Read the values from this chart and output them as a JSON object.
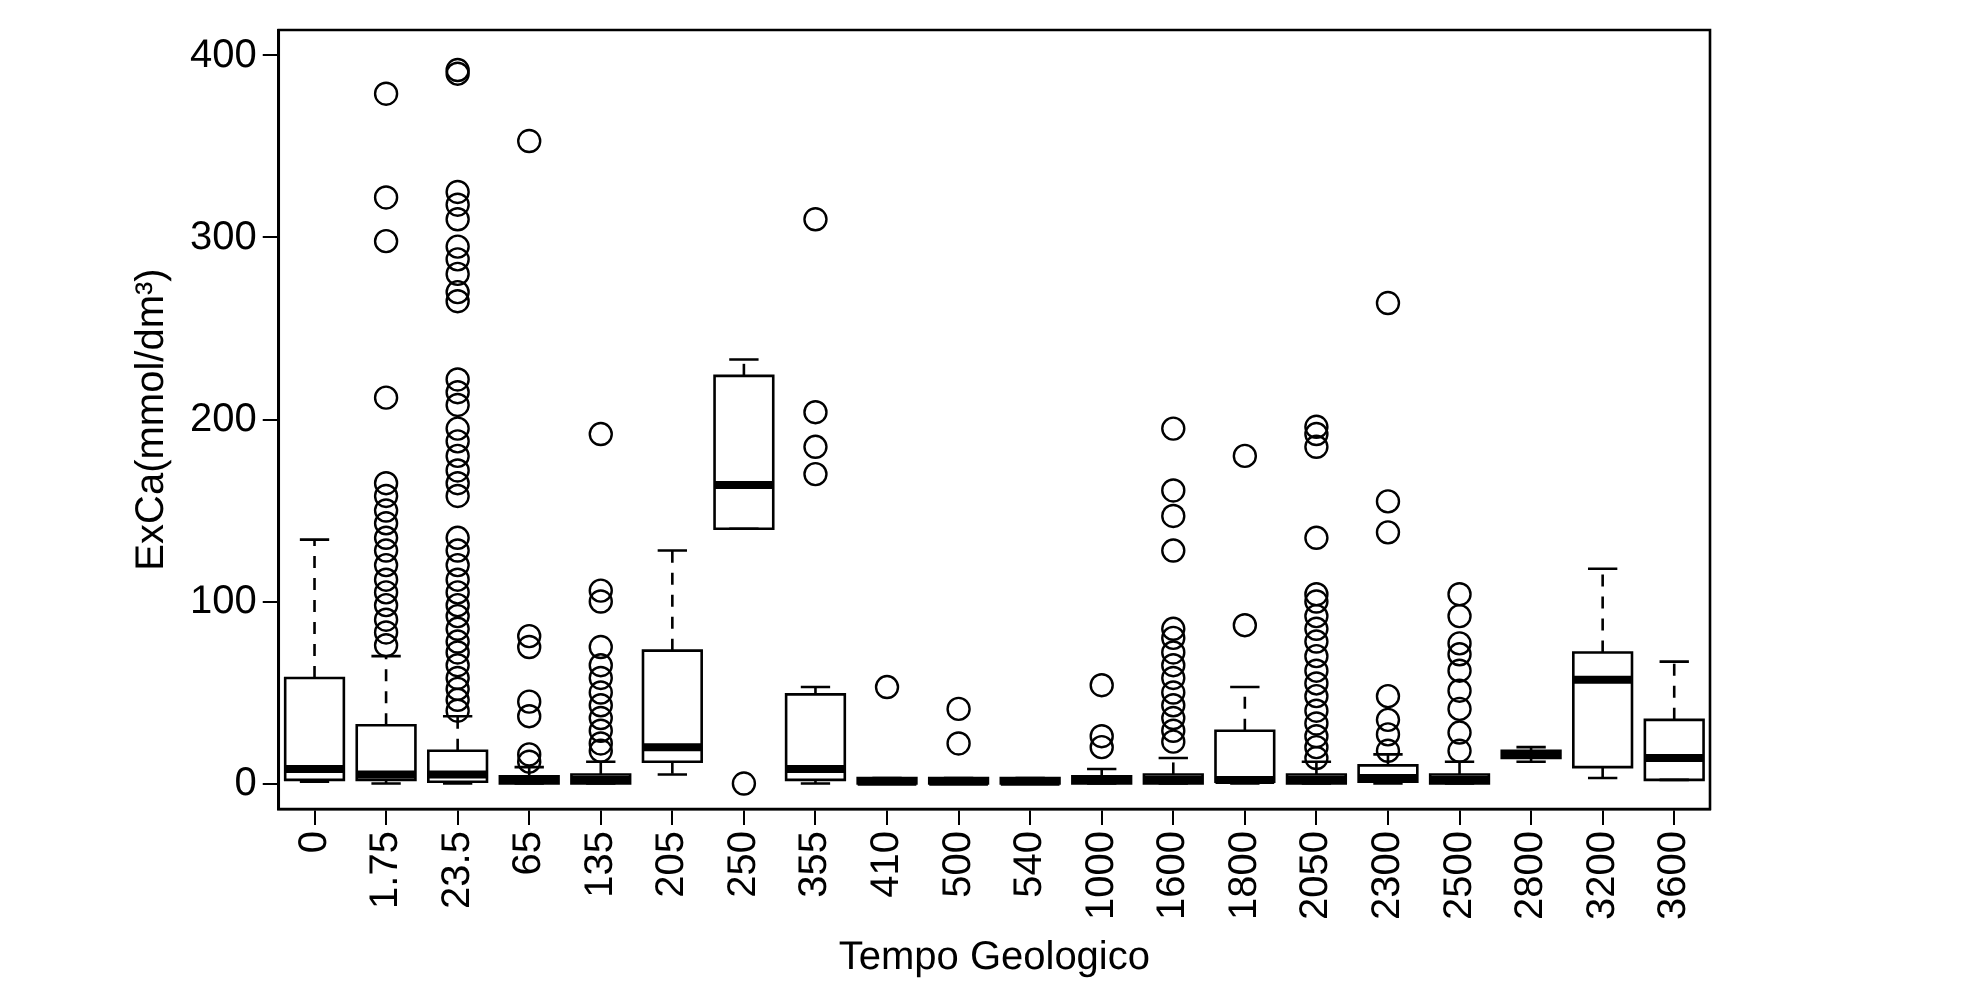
{
  "chart_data": {
    "type": "box",
    "xlabel": "Tempo Geologico",
    "ylabel": "ExCa(mmol/dm³)",
    "categories": [
      "0",
      "1.75",
      "23.5",
      "65",
      "135",
      "205",
      "250",
      "355",
      "410",
      "500",
      "540",
      "1000",
      "1600",
      "1800",
      "2050",
      "2300",
      "2500",
      "2800",
      "3200",
      "3600"
    ],
    "ylim": [
      -14,
      414
    ],
    "yticks": [
      0,
      100,
      200,
      300,
      400
    ],
    "series": [
      {
        "color": "#000000",
        "boxes": [
          {
            "low": 1,
            "q1": 2,
            "median": 8,
            "q3": 58,
            "high": 134
          },
          {
            "low": 0,
            "q1": 2,
            "median": 5,
            "q3": 32,
            "high": 70,
            "outliers": [
              379,
              322,
              298,
              212,
              165,
              158,
              150,
              143,
              135,
              128,
              120,
              112,
              105,
              98,
              90,
              83,
              76
            ]
          },
          {
            "low": 0,
            "q1": 1,
            "median": 5,
            "q3": 18,
            "high": 37,
            "outliers": [
              392,
              390,
              325,
              318,
              310,
              295,
              288,
              280,
              270,
              265,
              222,
              215,
              208,
              195,
              188,
              180,
              172,
              165,
              158,
              135,
              128,
              120,
              112,
              105,
              98,
              92,
              85,
              78,
              72,
              65,
              58,
              52,
              46,
              40
            ]
          },
          {
            "low": 0,
            "q1": 0,
            "median": 2,
            "q3": 4,
            "high": 9,
            "outliers": [
              353,
              81,
              75,
              45,
              37,
              16,
              12
            ]
          },
          {
            "low": 0,
            "q1": 0,
            "median": 2,
            "q3": 5,
            "high": 12,
            "outliers": [
              192,
              106,
              100,
              75,
              65,
              58,
              50,
              43,
              36,
              29,
              22,
              18
            ]
          },
          {
            "low": 5,
            "q1": 12,
            "median": 20,
            "q3": 73,
            "high": 128
          },
          {
            "low": 140,
            "q1": 140,
            "median": 164,
            "q3": 224,
            "high": 233,
            "outliers": [
              0
            ]
          },
          {
            "low": 0,
            "q1": 2,
            "median": 8,
            "q3": 49,
            "high": 53,
            "outliers": [
              310,
              204,
              185,
              170
            ]
          },
          {
            "low": 0,
            "q1": 0,
            "median": 1,
            "q3": 3,
            "high": 3,
            "outliers": [
              53
            ]
          },
          {
            "low": 0,
            "q1": 0,
            "median": 1,
            "q3": 3,
            "high": 3,
            "outliers": [
              41,
              22
            ]
          },
          {
            "low": 0,
            "q1": 0,
            "median": 1,
            "q3": 3,
            "high": 3
          },
          {
            "low": 0,
            "q1": 0,
            "median": 2,
            "q3": 4,
            "high": 8,
            "outliers": [
              54,
              26,
              20
            ]
          },
          {
            "low": 0,
            "q1": 0,
            "median": 2,
            "q3": 5,
            "high": 14,
            "outliers": [
              195,
              161,
              147,
              128,
              85,
              80,
              72,
              65,
              58,
              50,
              43,
              36,
              29,
              23
            ]
          },
          {
            "low": 0,
            "q1": 1,
            "median": 2,
            "q3": 29,
            "high": 53,
            "outliers": [
              180,
              87
            ]
          },
          {
            "low": 0,
            "q1": 0,
            "median": 2,
            "q3": 5,
            "high": 12,
            "outliers": [
              196,
              192,
              185,
              135,
              104,
              100,
              92,
              85,
              78,
              70,
              62,
              55,
              48,
              40,
              33,
              26,
              20,
              14
            ]
          },
          {
            "low": 0,
            "q1": 1,
            "median": 3,
            "q3": 10,
            "high": 16,
            "outliers": [
              264,
              155,
              138,
              48,
              35,
              27,
              18
            ]
          },
          {
            "low": 0,
            "q1": 0,
            "median": 2,
            "q3": 5,
            "high": 12,
            "outliers": [
              104,
              92,
              77,
              71,
              62,
              51,
              41,
              28,
              18
            ]
          },
          {
            "low": 12,
            "q1": 14,
            "median": 16,
            "q3": 18,
            "high": 20
          },
          {
            "low": 3,
            "q1": 9,
            "median": 57,
            "q3": 72,
            "high": 118
          },
          {
            "low": 2,
            "q1": 2,
            "median": 14,
            "q3": 35,
            "high": 67
          }
        ]
      }
    ]
  }
}
